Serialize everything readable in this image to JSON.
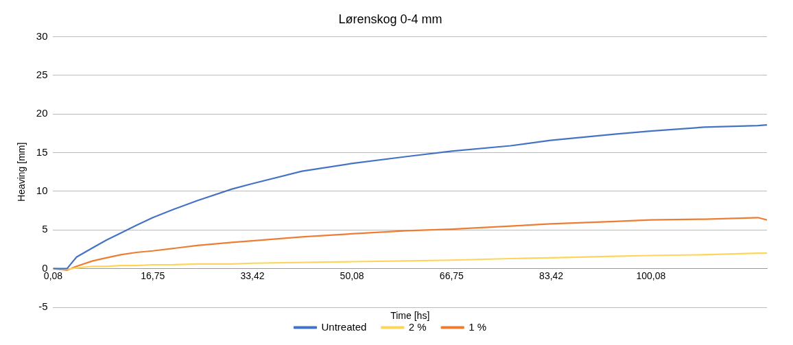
{
  "chart_data": {
    "type": "line",
    "title": "Lørenskog 0-4 mm",
    "xlabel": "Time [hs]",
    "ylabel": "Heaving [mm]",
    "xlim": [
      0.08,
      119.5
    ],
    "xticks": [
      {
        "value": 0.08,
        "label": "0,08"
      },
      {
        "value": 16.75,
        "label": "16,75"
      },
      {
        "value": 33.42,
        "label": "33,42"
      },
      {
        "value": 50.08,
        "label": "50,08"
      },
      {
        "value": 66.75,
        "label": "66,75"
      },
      {
        "value": 83.42,
        "label": "83,42"
      },
      {
        "value": 100.08,
        "label": "100,08"
      }
    ],
    "ylim": [
      -5,
      30
    ],
    "yticks": [
      -5,
      0,
      5,
      10,
      15,
      20,
      25,
      30
    ],
    "grid": "y",
    "legend": "bottom",
    "marker": "none",
    "line_style": "solid",
    "x": [
      0.08,
      2.4,
      4,
      6.7,
      9,
      11.4,
      14,
      16.75,
      20,
      24.2,
      30,
      33.4,
      41.7,
      50,
      59.2,
      66.75,
      76.6,
      83.3,
      94,
      100,
      109,
      118,
      119.5
    ],
    "series": [
      {
        "name": "Untreated",
        "color": "#4472c4",
        "values": [
          0,
          0,
          1.5,
          2.7,
          3.7,
          4.6,
          5.6,
          6.6,
          7.6,
          8.8,
          10.3,
          11,
          12.6,
          13.6,
          14.5,
          15.2,
          15.9,
          16.6,
          17.4,
          17.8,
          18.3,
          18.5,
          18.6
        ]
      },
      {
        "name": "2 %",
        "color": "#fdd55a",
        "values": [
          0,
          -0.1,
          0.1,
          0.3,
          0.3,
          0.4,
          0.4,
          0.5,
          0.5,
          0.6,
          0.6,
          0.7,
          0.8,
          0.9,
          1.0,
          1.1,
          1.3,
          1.4,
          1.6,
          1.7,
          1.8,
          2.0,
          2.0
        ]
      },
      {
        "name": "1 %",
        "color": "#ed7d31",
        "values": [
          0,
          -0.2,
          0.3,
          1.0,
          1.4,
          1.8,
          2.1,
          2.3,
          2.6,
          3.0,
          3.4,
          3.6,
          4.1,
          4.5,
          4.9,
          5.1,
          5.5,
          5.8,
          6.1,
          6.3,
          6.4,
          6.6,
          6.3
        ]
      }
    ]
  }
}
